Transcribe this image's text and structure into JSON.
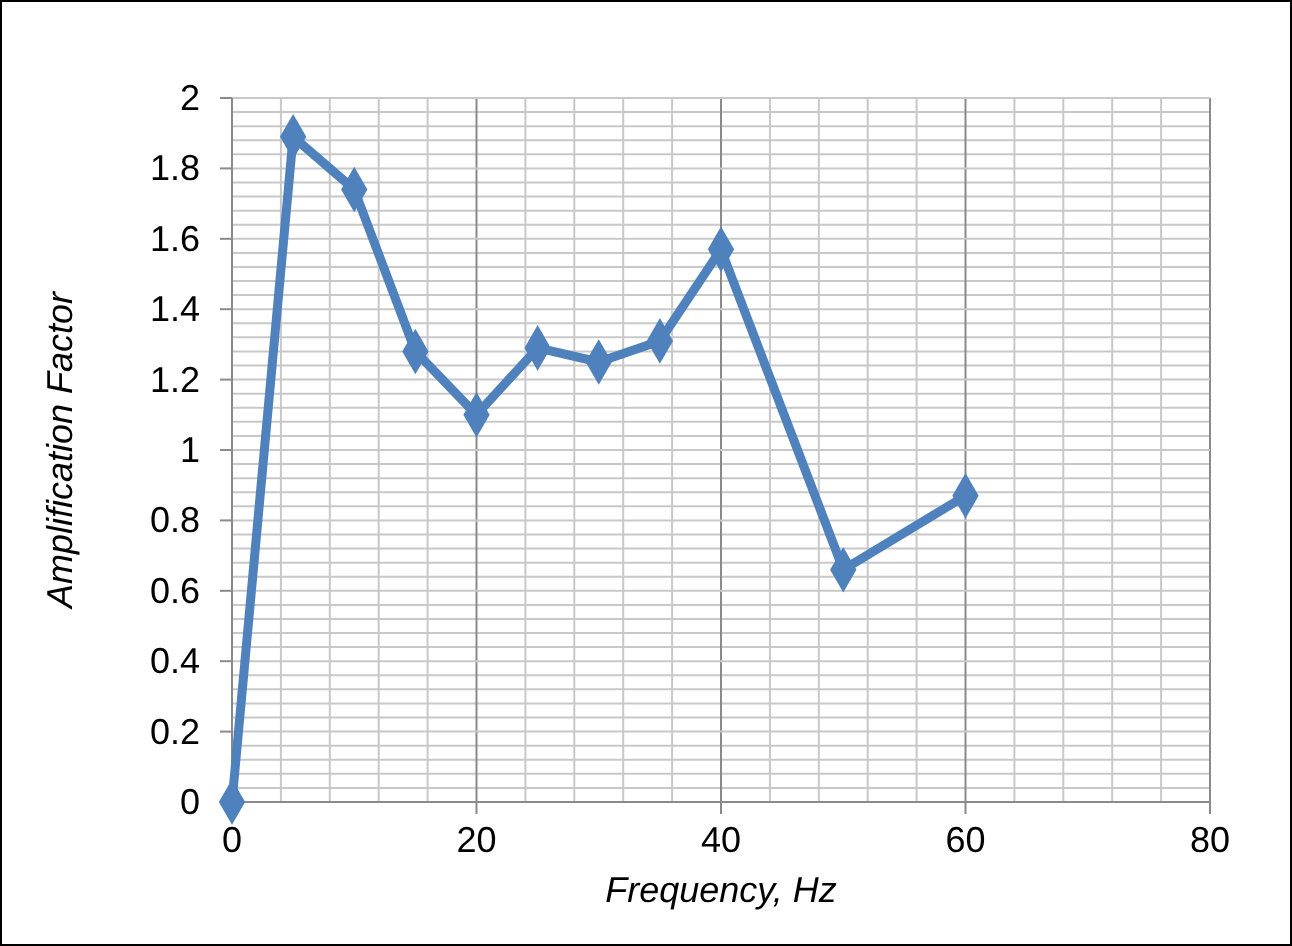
{
  "chart_data": {
    "type": "line",
    "xlabel": "Frequency, Hz",
    "ylabel": "Amplification Factor",
    "x": [
      0,
      5,
      10,
      15,
      20,
      25,
      30,
      35,
      40,
      50,
      60
    ],
    "series": [
      {
        "color": "#4f81bd",
        "values": [
          0,
          1.89,
          1.74,
          1.28,
          1.1,
          1.29,
          1.25,
          1.31,
          1.57,
          0.66,
          0.87
        ]
      }
    ],
    "xlim": [
      0,
      80
    ],
    "xticks": [
      0,
      20,
      40,
      60,
      80
    ],
    "ylim": [
      0,
      2
    ],
    "yticks": [
      0,
      0.2,
      0.4,
      0.6,
      0.8,
      1,
      1.2,
      1.4,
      1.6,
      1.8,
      2
    ],
    "grid": true,
    "marker": "diamond",
    "line_style": "solid"
  }
}
